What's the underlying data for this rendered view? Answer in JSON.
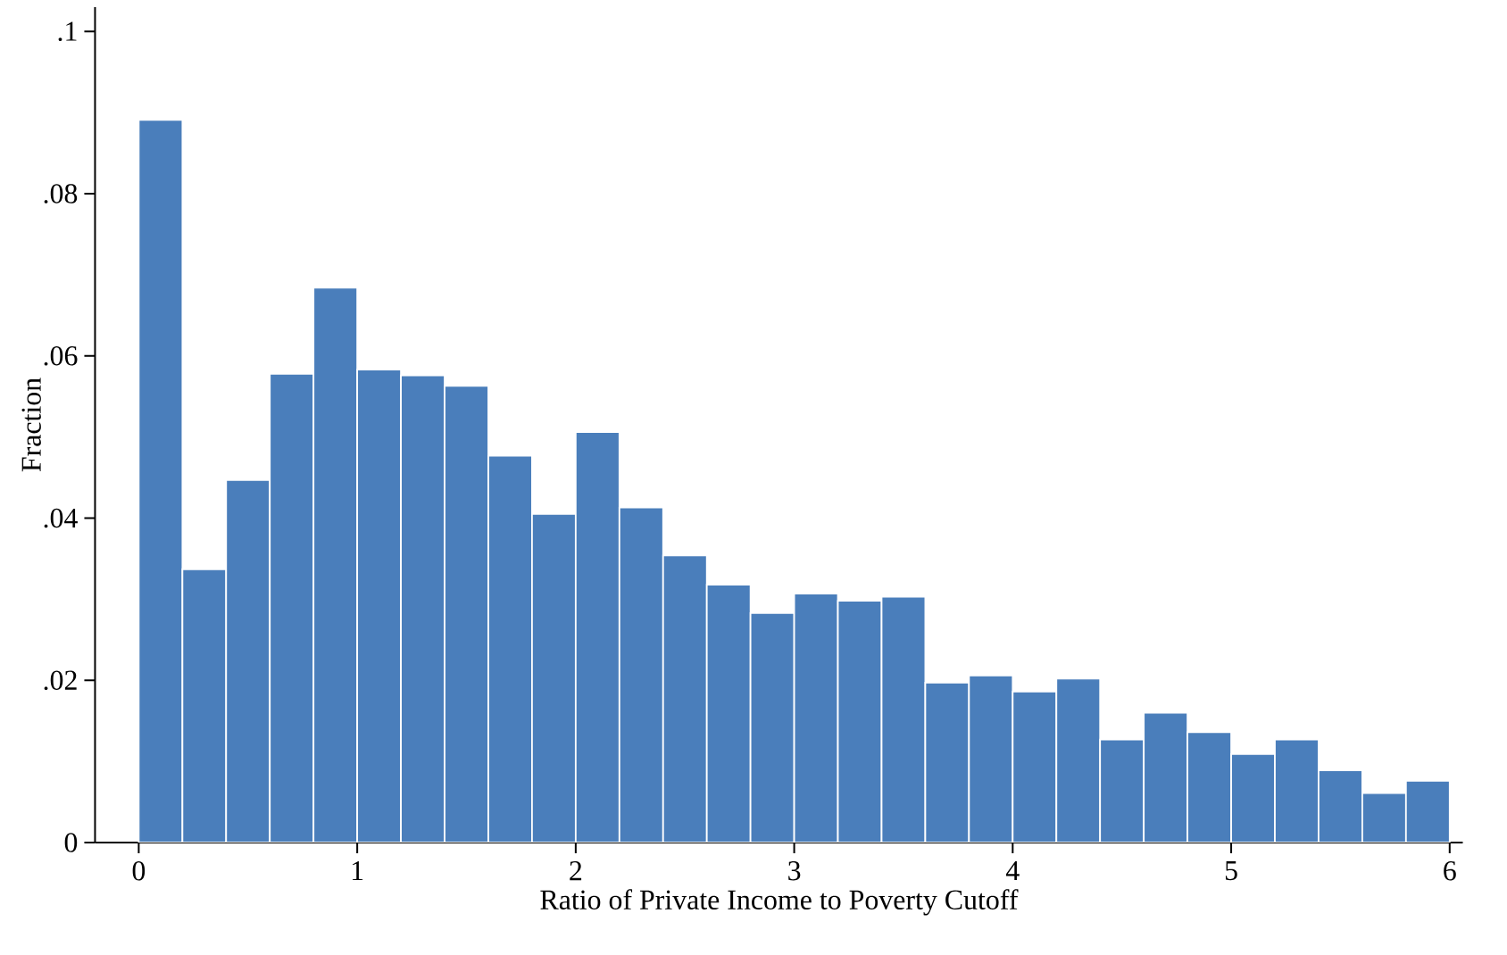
{
  "chart_data": {
    "type": "histogram",
    "xlabel": "Ratio of Private Income to Poverty Cutoff",
    "ylabel": "Fraction",
    "bins": [
      0,
      0.2,
      0.4,
      0.6,
      0.8,
      1.0,
      1.2,
      1.4,
      1.6,
      1.8,
      2.0,
      2.2,
      2.4,
      2.6,
      2.8,
      3.0,
      3.2,
      3.4,
      3.6,
      3.8,
      4.0,
      4.2,
      4.4,
      4.6,
      4.8,
      5.0,
      5.2,
      5.4,
      5.6,
      5.8,
      6.0
    ],
    "values": [
      0.0891,
      0.0337,
      0.0447,
      0.0578,
      0.0684,
      0.0583,
      0.0576,
      0.0563,
      0.0477,
      0.0405,
      0.0506,
      0.0413,
      0.0354,
      0.0318,
      0.0283,
      0.0307,
      0.0298,
      0.0303,
      0.0197,
      0.0206,
      0.0186,
      0.0202,
      0.0127,
      0.016,
      0.0136,
      0.0109,
      0.0127,
      0.0089,
      0.0061,
      0.0076
    ],
    "color": "#4a7ebb",
    "xlim": [
      -0.2,
      6.06
    ],
    "ylim": [
      0,
      0.103
    ],
    "xticks": [
      0,
      1,
      2,
      3,
      4,
      5,
      6
    ],
    "yticks": [
      0,
      {
        "value": 0.02,
        "label": ".02"
      },
      {
        "value": 0.04,
        "label": ".04"
      },
      {
        "value": 0.06,
        "label": ".06"
      },
      {
        "value": 0.08,
        "label": ".08"
      },
      {
        "value": 0.1,
        "label": ".1"
      }
    ],
    "grid": false
  }
}
